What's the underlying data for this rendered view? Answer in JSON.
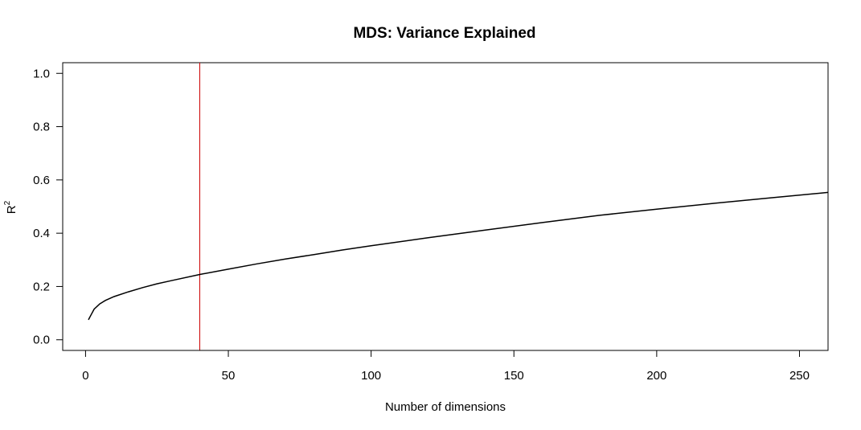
{
  "chart_data": {
    "type": "line",
    "title": "MDS: Variance Explained",
    "xlabel": "Number of dimensions",
    "ylabel_base": "R",
    "ylabel_sup": "2",
    "xlim": [
      -8,
      260
    ],
    "ylim": [
      -0.04,
      1.04
    ],
    "xticks": [
      0,
      50,
      100,
      150,
      200,
      250
    ],
    "xtick_labels": [
      "0",
      "50",
      "100",
      "150",
      "200",
      "250"
    ],
    "yticks": [
      0.0,
      0.2,
      0.4,
      0.6,
      0.8,
      1.0
    ],
    "ytick_labels": [
      "0.0",
      "0.2",
      "0.4",
      "0.6",
      "0.8",
      "1.0"
    ],
    "grid": false,
    "series": [
      {
        "color": "#000000",
        "x": [
          1,
          2,
          3,
          5,
          7,
          10,
          15,
          20,
          25,
          30,
          40,
          50,
          60,
          70,
          80,
          90,
          100,
          120,
          140,
          160,
          180,
          200,
          220,
          240,
          260
        ],
        "y": [
          0.075,
          0.095,
          0.115,
          0.135,
          0.148,
          0.162,
          0.18,
          0.196,
          0.21,
          0.222,
          0.245,
          0.265,
          0.285,
          0.303,
          0.32,
          0.337,
          0.353,
          0.383,
          0.412,
          0.44,
          0.467,
          0.49,
          0.512,
          0.533,
          0.553
        ]
      }
    ],
    "vline": {
      "x": 40,
      "color": "#cc0000"
    }
  }
}
